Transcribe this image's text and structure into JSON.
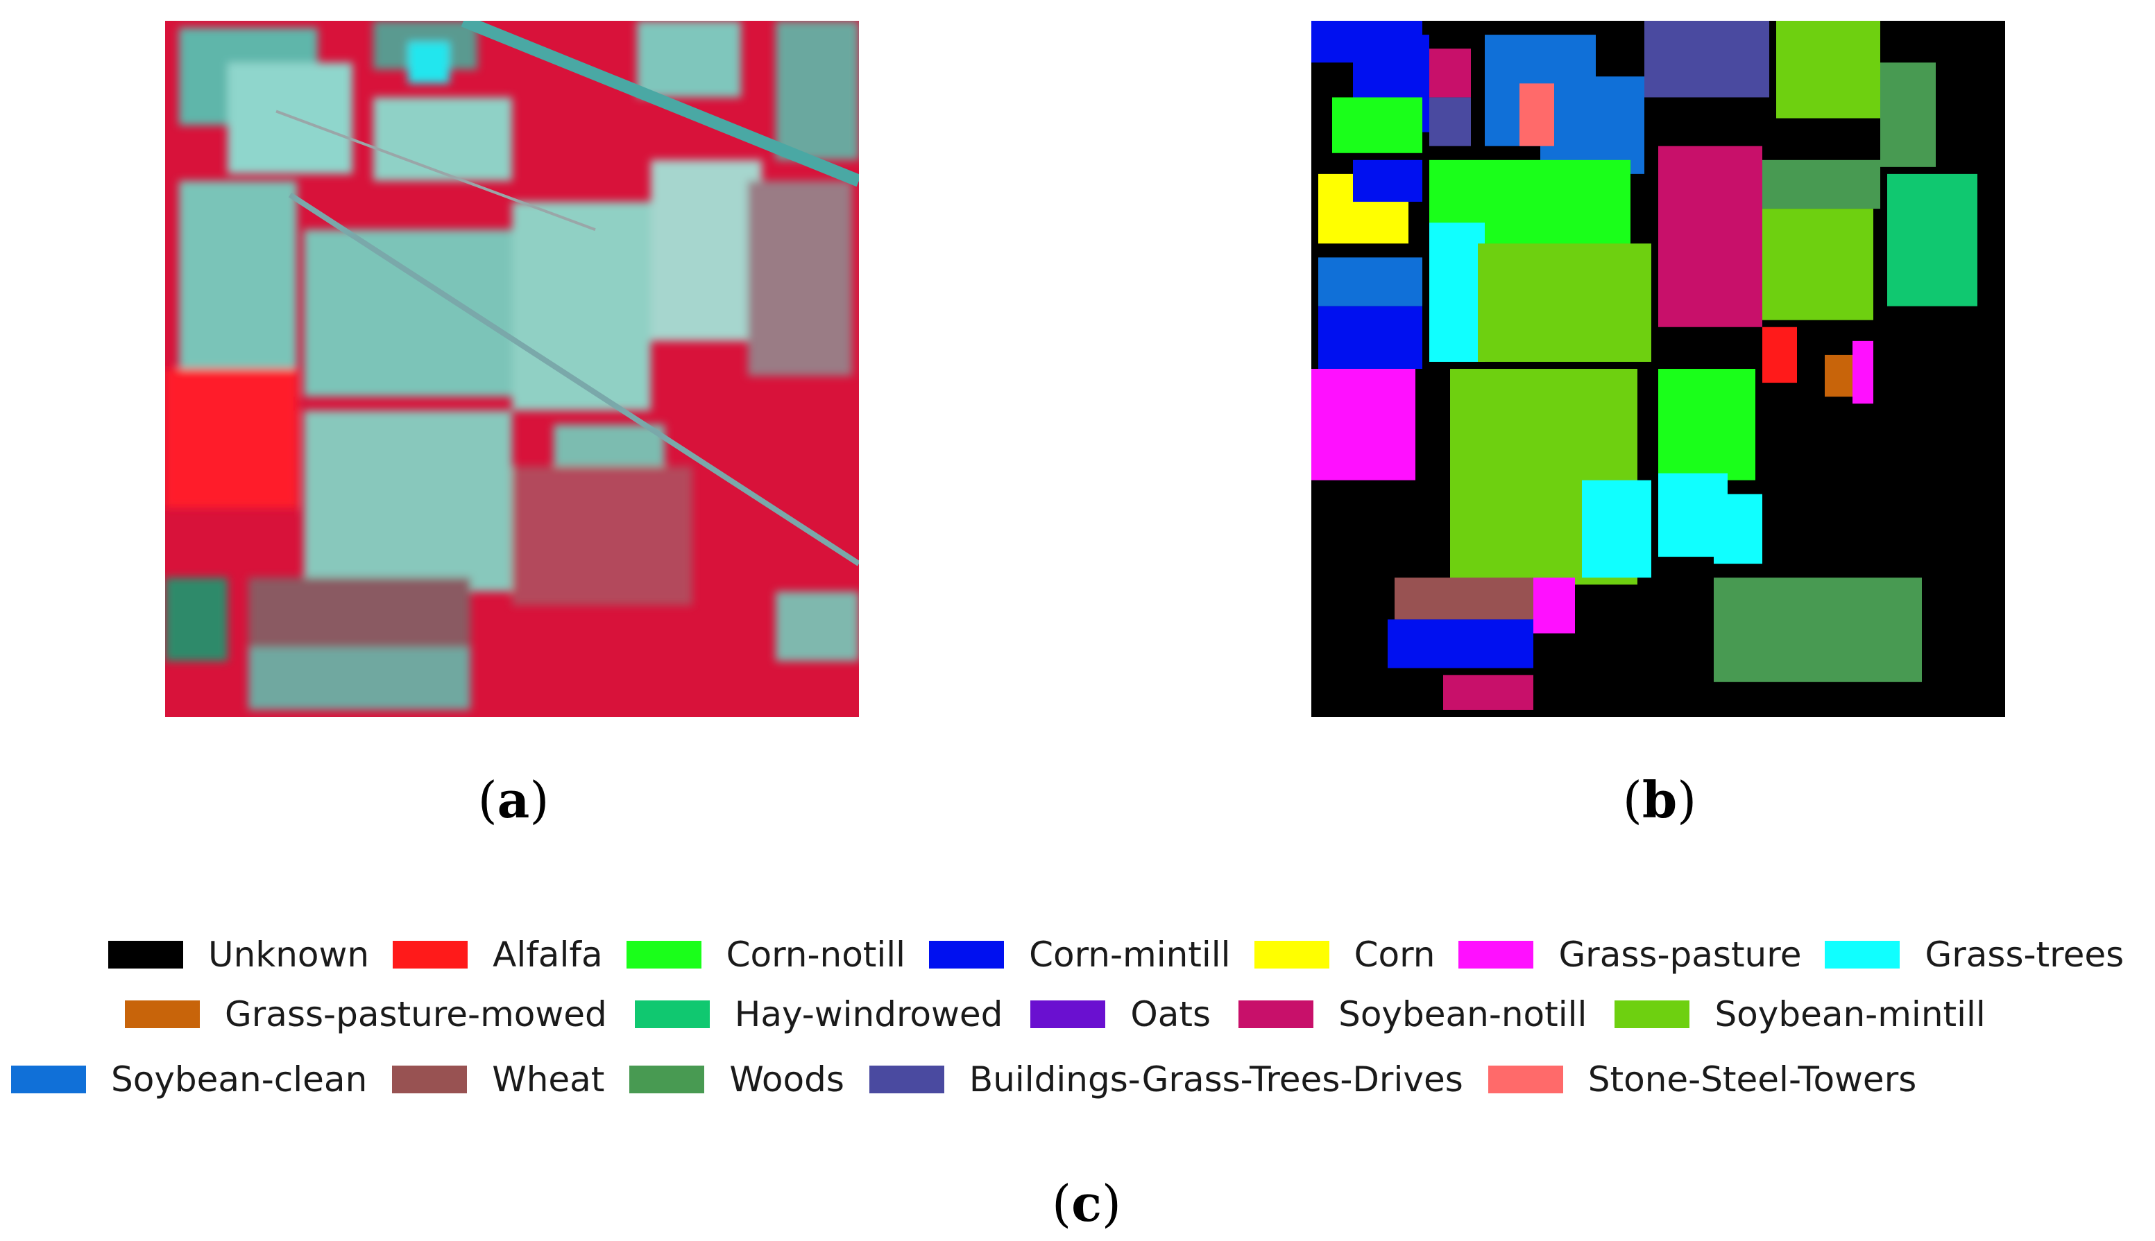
{
  "captions": {
    "a": "a",
    "b": "b",
    "c": "c"
  },
  "legend": [
    [
      {
        "label": "Unknown",
        "color": "#000000"
      },
      {
        "label": "Alfalfa",
        "color": "#ff1a1a"
      },
      {
        "label": "Corn-notill",
        "color": "#1aff1a"
      },
      {
        "label": "Corn-mintill",
        "color": "#0010f0"
      },
      {
        "label": "Corn",
        "color": "#ffff00"
      },
      {
        "label": "Grass-pasture",
        "color": "#ff10ff"
      },
      {
        "label": "Grass-trees",
        "color": "#10ffff"
      }
    ],
    [
      {
        "label": "Grass-pasture-mowed",
        "color": "#c8640a"
      },
      {
        "label": "Hay-windrowed",
        "color": "#10c870"
      },
      {
        "label": "Oats",
        "color": "#6a10d0"
      },
      {
        "label": "Soybean-notill",
        "color": "#c8106a"
      },
      {
        "label": "Soybean-mintill",
        "color": "#6ed010"
      }
    ],
    [
      {
        "label": "Soybean-clean",
        "color": "#1070d8"
      },
      {
        "label": "Wheat",
        "color": "#985252"
      },
      {
        "label": "Woods",
        "color": "#489a52"
      },
      {
        "label": "Buildings-Grass-Trees-Drives",
        "color": "#4a4aa0"
      },
      {
        "label": "Stone-Steel-Towers",
        "color": "#ff6a6a"
      }
    ]
  ]
}
